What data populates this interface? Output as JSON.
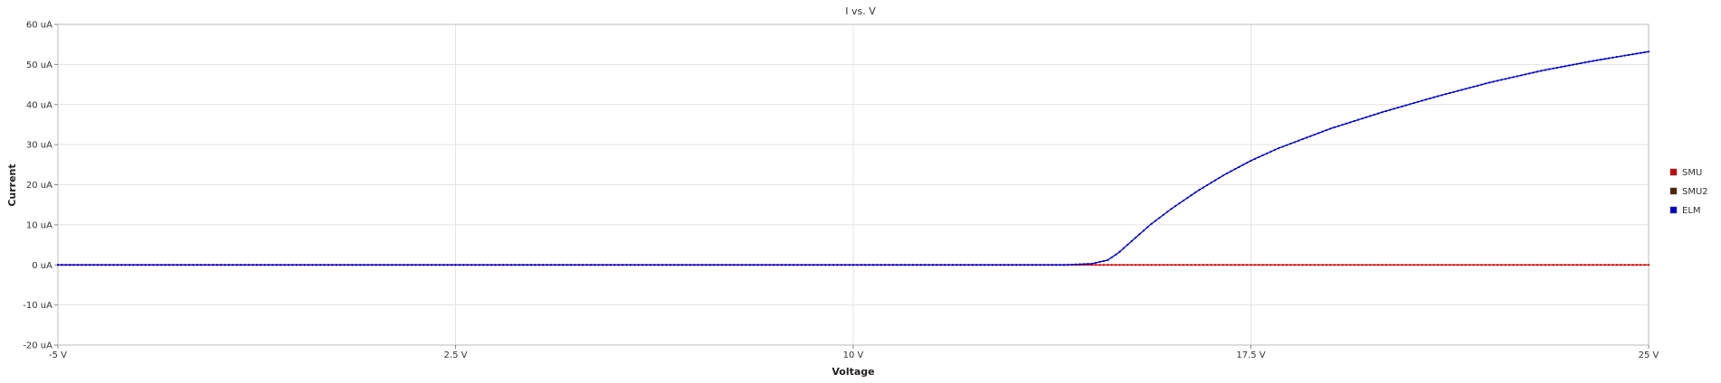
{
  "chart_data": {
    "type": "line",
    "title": "I vs. V",
    "xlabel": "Voltage",
    "ylabel": "Current",
    "xlim": [
      -5,
      25
    ],
    "ylim": [
      -20,
      60
    ],
    "x_ticks": [
      {
        "value": -5,
        "label": "-5 V"
      },
      {
        "value": 2.5,
        "label": "2.5 V"
      },
      {
        "value": 10,
        "label": "10 V"
      },
      {
        "value": 17.5,
        "label": "17.5 V"
      },
      {
        "value": 25,
        "label": "25 V"
      }
    ],
    "y_ticks": [
      {
        "value": 60,
        "label": "60 uA"
      },
      {
        "value": 50,
        "label": "50 uA"
      },
      {
        "value": 40,
        "label": "40 uA"
      },
      {
        "value": 30,
        "label": "30 uA"
      },
      {
        "value": 20,
        "label": "20 uA"
      },
      {
        "value": 10,
        "label": "10 uA"
      },
      {
        "value": 0,
        "label": "0 uA"
      },
      {
        "value": -10,
        "label": "-10 uA"
      },
      {
        "value": -20,
        "label": "-20 uA"
      }
    ],
    "grid": true,
    "legend_position": "right",
    "series": [
      {
        "name": "SMU",
        "color": "#cc0000",
        "x": [
          -5,
          14.5,
          25
        ],
        "values": [
          0,
          0,
          0
        ]
      },
      {
        "name": "SMU2",
        "color": "#4d2600",
        "x": [],
        "values": []
      },
      {
        "name": "ELM",
        "color": "#0000cc",
        "x": [
          -5,
          0,
          5,
          10,
          14.0,
          14.5,
          14.8,
          15.0,
          15.3,
          15.6,
          16.0,
          16.5,
          17.0,
          17.5,
          18.0,
          19.0,
          20.0,
          21.0,
          22.0,
          23.0,
          24.0,
          25.0
        ],
        "values": [
          0,
          0,
          0,
          0,
          0,
          0.3,
          1.2,
          3.0,
          6.5,
          10.0,
          14.0,
          18.5,
          22.5,
          26.0,
          29.0,
          34.0,
          38.2,
          42.0,
          45.5,
          48.5,
          51.0,
          53.2
        ]
      }
    ]
  }
}
